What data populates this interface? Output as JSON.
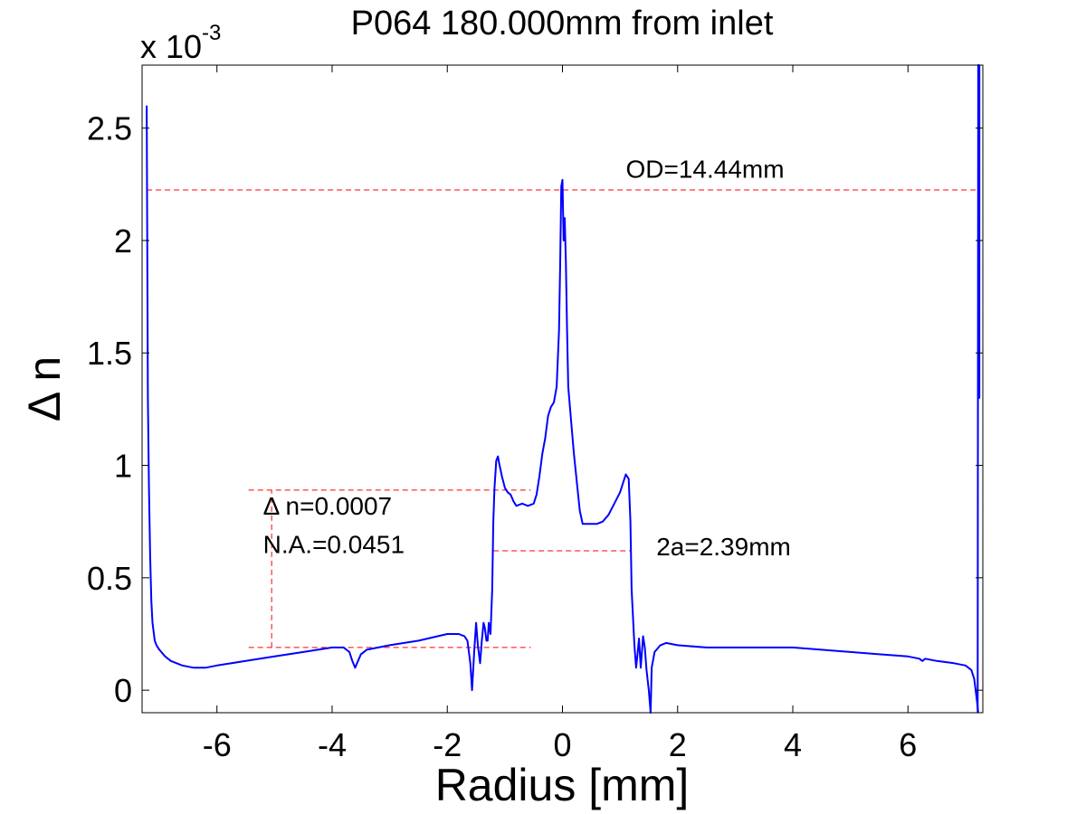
{
  "chart_data": {
    "type": "line",
    "title": "P064  180.000mm from inlet",
    "xlabel": "Radius [mm]",
    "ylabel": "Δ n",
    "y_multiplier_label": "x 10",
    "y_multiplier_exponent": "-3",
    "xlim": [
      -7.3,
      7.3
    ],
    "ylim": [
      -0.1,
      2.78
    ],
    "x_ticks": [
      -6,
      -4,
      -2,
      0,
      2,
      4,
      6
    ],
    "x_tick_labels": [
      "-6",
      "-4",
      "-2",
      "0",
      "2",
      "4",
      "6"
    ],
    "y_ticks": [
      0,
      0.5,
      1,
      1.5,
      2,
      2.5
    ],
    "y_tick_labels": [
      "0",
      "0.5",
      "1",
      "1.5",
      "2",
      "2.5"
    ],
    "grid": false,
    "colors": {
      "profile": "#0000ff",
      "annotation": "#ff0000"
    },
    "series": [
      {
        "x": [
          -7.22,
          -7.2,
          -7.18,
          -7.16,
          -7.14,
          -7.12,
          -7.08,
          -7.05,
          -7.0,
          -6.9,
          -6.8,
          -6.6,
          -6.4,
          -6.2,
          -6.0,
          -5.5,
          -5.0,
          -4.5,
          -4.0,
          -3.8,
          -3.7,
          -3.65,
          -3.6,
          -3.55,
          -3.5,
          -3.4,
          -3.2,
          -3.0,
          -2.5,
          -2.0,
          -1.8,
          -1.7,
          -1.65,
          -1.6,
          -1.57,
          -1.53,
          -1.5,
          -1.47,
          -1.43,
          -1.4,
          -1.37,
          -1.35,
          -1.32,
          -1.3,
          -1.28,
          -1.25,
          -1.22,
          -1.2,
          -1.18,
          -1.16,
          -1.15,
          -1.12,
          -1.1,
          -1.05,
          -1.0,
          -0.95,
          -0.9,
          -0.85,
          -0.8,
          -0.7,
          -0.6,
          -0.5,
          -0.45,
          -0.4,
          -0.35,
          -0.3,
          -0.25,
          -0.2,
          -0.15,
          -0.1,
          -0.06,
          -0.04,
          -0.02,
          0.0,
          0.02,
          0.04,
          0.06,
          0.08,
          0.1,
          0.15,
          0.2,
          0.3,
          0.35,
          0.4,
          0.5,
          0.6,
          0.7,
          0.8,
          0.9,
          1.0,
          1.05,
          1.1,
          1.15,
          1.18,
          1.2,
          1.25,
          1.28,
          1.3,
          1.33,
          1.36,
          1.4,
          1.43,
          1.46,
          1.5,
          1.53,
          1.55,
          1.6,
          1.7,
          1.8,
          2.0,
          2.5,
          3.0,
          3.5,
          4.0,
          4.5,
          5.0,
          5.5,
          6.0,
          6.2,
          6.25,
          6.3,
          6.5,
          6.8,
          7.0,
          7.1,
          7.15,
          7.2,
          7.22
        ],
        "y": [
          2.6,
          1.3,
          0.9,
          0.6,
          0.4,
          0.3,
          0.22,
          0.2,
          0.18,
          0.15,
          0.13,
          0.11,
          0.1,
          0.1,
          0.11,
          0.13,
          0.15,
          0.17,
          0.19,
          0.19,
          0.17,
          0.13,
          0.1,
          0.13,
          0.16,
          0.18,
          0.19,
          0.2,
          0.22,
          0.25,
          0.25,
          0.24,
          0.22,
          0.12,
          0.0,
          0.18,
          0.3,
          0.2,
          0.12,
          0.22,
          0.3,
          0.28,
          0.22,
          0.22,
          0.3,
          0.25,
          0.45,
          0.75,
          0.9,
          0.98,
          1.02,
          1.04,
          1.01,
          0.95,
          0.9,
          0.88,
          0.87,
          0.84,
          0.82,
          0.83,
          0.82,
          0.83,
          0.87,
          0.95,
          1.05,
          1.12,
          1.22,
          1.26,
          1.28,
          1.35,
          1.6,
          1.9,
          2.24,
          2.27,
          2.0,
          2.1,
          1.9,
          1.6,
          1.35,
          1.2,
          1.05,
          0.8,
          0.74,
          0.74,
          0.74,
          0.74,
          0.75,
          0.78,
          0.83,
          0.88,
          0.92,
          0.96,
          0.94,
          0.75,
          0.45,
          0.2,
          0.1,
          0.15,
          0.23,
          0.1,
          0.24,
          0.19,
          0.09,
          0.0,
          -0.1,
          0.1,
          0.17,
          0.2,
          0.21,
          0.2,
          0.19,
          0.19,
          0.19,
          0.19,
          0.18,
          0.17,
          0.16,
          0.15,
          0.14,
          0.13,
          0.14,
          0.13,
          0.12,
          0.11,
          0.09,
          0.05,
          -0.05,
          -0.1
        ]
      },
      {
        "x": [
          7.21,
          7.22,
          7.23,
          7.24,
          7.24
        ],
        "y": [
          -0.1,
          2.78,
          2.78,
          1.3,
          2.78
        ]
      }
    ],
    "annotations": [
      {
        "text": "OD=14.44mm",
        "x": 1.1,
        "y": 2.28
      },
      {
        "text": "Δ n=0.0007",
        "x": -5.2,
        "y": 0.78
      },
      {
        "text": "N.A.=0.0451",
        "x": -5.2,
        "y": 0.61
      },
      {
        "text": "2a=2.39mm",
        "x": 1.63,
        "y": 0.6
      }
    ],
    "reference_lines": [
      {
        "x1": -7.22,
        "y1": 2.225,
        "x2": 7.22,
        "y2": 2.225
      },
      {
        "x1": -5.45,
        "y1": 0.89,
        "x2": -0.55,
        "y2": 0.89
      },
      {
        "x1": -5.45,
        "y1": 0.19,
        "x2": -0.55,
        "y2": 0.19
      },
      {
        "x1": -5.05,
        "y1": 0.19,
        "x2": -5.05,
        "y2": 0.89
      },
      {
        "x1": -1.2,
        "y1": 0.62,
        "x2": 1.2,
        "y2": 0.62
      }
    ]
  }
}
